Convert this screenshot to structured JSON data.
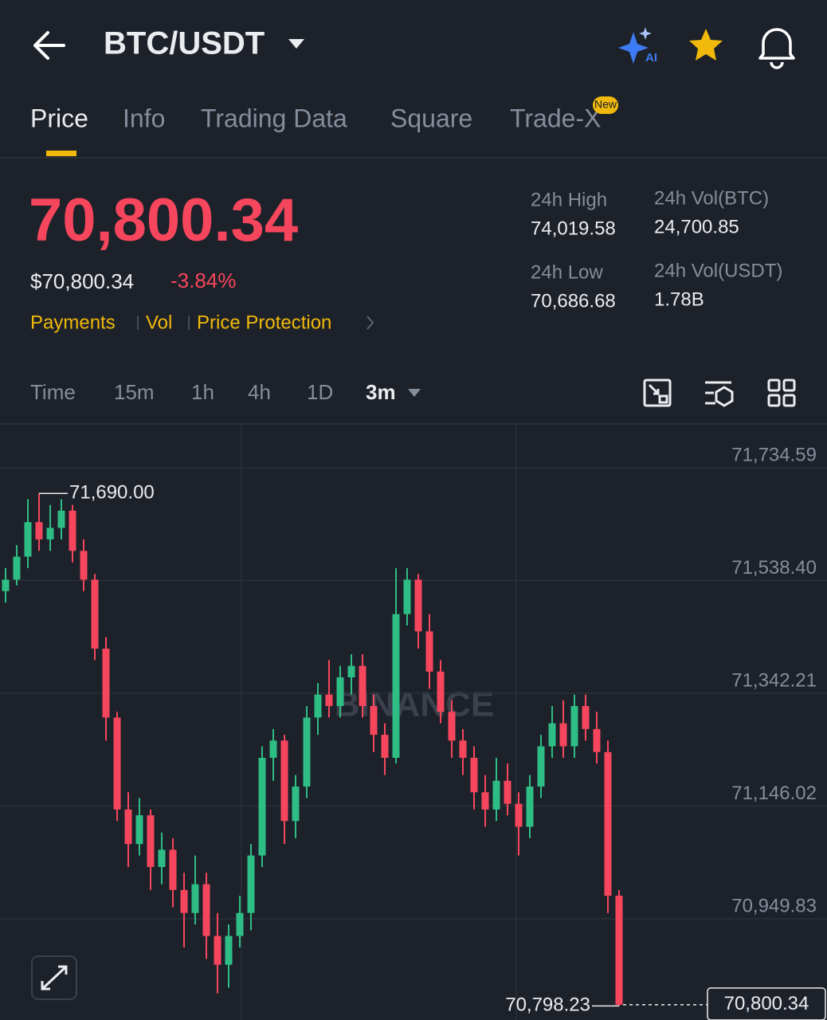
{
  "header": {
    "pair": "BTC/USDT"
  },
  "tabs": [
    "Price",
    "Info",
    "Trading Data",
    "Square",
    "Trade-X"
  ],
  "badge": "New",
  "price": {
    "last": "70,800.34",
    "fiat": "$70,800.34",
    "change": "-3.84%"
  },
  "links": [
    "Payments",
    "Vol",
    "Price Protection"
  ],
  "stats": [
    {
      "label": "24h High",
      "value": "74,019.58"
    },
    {
      "label": "24h Vol(BTC)",
      "value": "24,700.85"
    },
    {
      "label": "24h Low",
      "value": "70,686.68"
    },
    {
      "label": "24h Vol(USDT)",
      "value": "1.78B"
    }
  ],
  "intervals": [
    "Time",
    "15m",
    "1h",
    "4h",
    "1D",
    "3m"
  ],
  "chart_data": {
    "type": "candlestick",
    "watermark": "BINANCE",
    "up_color": "#2ebd85",
    "down_color": "#f6465d",
    "ylim": [
      70773.8,
      71809.5
    ],
    "yticks": [
      {
        "value": 71734.59,
        "label": "71,734.59"
      },
      {
        "value": 71538.4,
        "label": "71,538.40"
      },
      {
        "value": 71342.21,
        "label": "71,342.21"
      },
      {
        "value": 71146.02,
        "label": "71,146.02"
      },
      {
        "value": 70949.83,
        "label": "70,949.83"
      }
    ],
    "high_marker": {
      "value": 71690.0,
      "label": "71,690.00"
    },
    "low_marker": {
      "value": 70798.23,
      "label": "70,798.23"
    },
    "last_price": {
      "value": 70800.34,
      "label": "70,800.34"
    },
    "candles": [
      [
        71520,
        71560,
        71500,
        71540
      ],
      [
        71540,
        71600,
        71530,
        71580
      ],
      [
        71580,
        71680,
        71560,
        71640
      ],
      [
        71640,
        71690,
        71590,
        71610
      ],
      [
        71610,
        71670,
        71590,
        71630
      ],
      [
        71630,
        71680,
        71610,
        71660
      ],
      [
        71660,
        71670,
        71570,
        71590
      ],
      [
        71590,
        71610,
        71520,
        71540
      ],
      [
        71540,
        71550,
        71400,
        71420
      ],
      [
        71420,
        71440,
        71260,
        71300
      ],
      [
        71300,
        71310,
        71120,
        71140
      ],
      [
        71140,
        71170,
        71040,
        71080
      ],
      [
        71080,
        71160,
        71060,
        71130
      ],
      [
        71130,
        71140,
        71000,
        71040
      ],
      [
        71040,
        71100,
        71010,
        71070
      ],
      [
        71070,
        71090,
        70970,
        71000
      ],
      [
        71000,
        71030,
        70900,
        70960
      ],
      [
        70960,
        71060,
        70940,
        71010
      ],
      [
        71010,
        71030,
        70880,
        70920
      ],
      [
        70920,
        70960,
        70820,
        70870
      ],
      [
        70870,
        70940,
        70830,
        70920
      ],
      [
        70920,
        70990,
        70900,
        70960
      ],
      [
        70960,
        71080,
        70930,
        71060
      ],
      [
        71060,
        71250,
        71040,
        71230
      ],
      [
        71230,
        71280,
        71190,
        71260
      ],
      [
        71260,
        71270,
        71080,
        71120
      ],
      [
        71120,
        71200,
        71090,
        71180
      ],
      [
        71180,
        71320,
        71160,
        71300
      ],
      [
        71300,
        71360,
        71270,
        71340
      ],
      [
        71340,
        71400,
        71300,
        71320
      ],
      [
        71320,
        71390,
        71300,
        71370
      ],
      [
        71370,
        71410,
        71340,
        71390
      ],
      [
        71390,
        71410,
        71300,
        71320
      ],
      [
        71320,
        71340,
        71240,
        71270
      ],
      [
        71270,
        71290,
        71200,
        71230
      ],
      [
        71230,
        71560,
        71220,
        71480
      ],
      [
        71480,
        71560,
        71460,
        71540
      ],
      [
        71540,
        71550,
        71420,
        71450
      ],
      [
        71450,
        71480,
        71350,
        71380
      ],
      [
        71380,
        71400,
        71290,
        71310
      ],
      [
        71310,
        71330,
        71230,
        71260
      ],
      [
        71260,
        71280,
        71200,
        71230
      ],
      [
        71230,
        71250,
        71140,
        71170
      ],
      [
        71170,
        71200,
        71110,
        71140
      ],
      [
        71140,
        71230,
        71120,
        71190
      ],
      [
        71190,
        71220,
        71130,
        71150
      ],
      [
        71150,
        71170,
        71060,
        71110
      ],
      [
        71110,
        71200,
        71090,
        71180
      ],
      [
        71180,
        71270,
        71160,
        71250
      ],
      [
        71250,
        71320,
        71230,
        71290
      ],
      [
        71290,
        71330,
        71230,
        71250
      ],
      [
        71250,
        71340,
        71230,
        71320
      ],
      [
        71320,
        71340,
        71260,
        71280
      ],
      [
        71280,
        71310,
        71220,
        71240
      ],
      [
        71240,
        71260,
        70960,
        70990
      ],
      [
        70990,
        71000,
        70798.23,
        70800.34
      ]
    ]
  }
}
